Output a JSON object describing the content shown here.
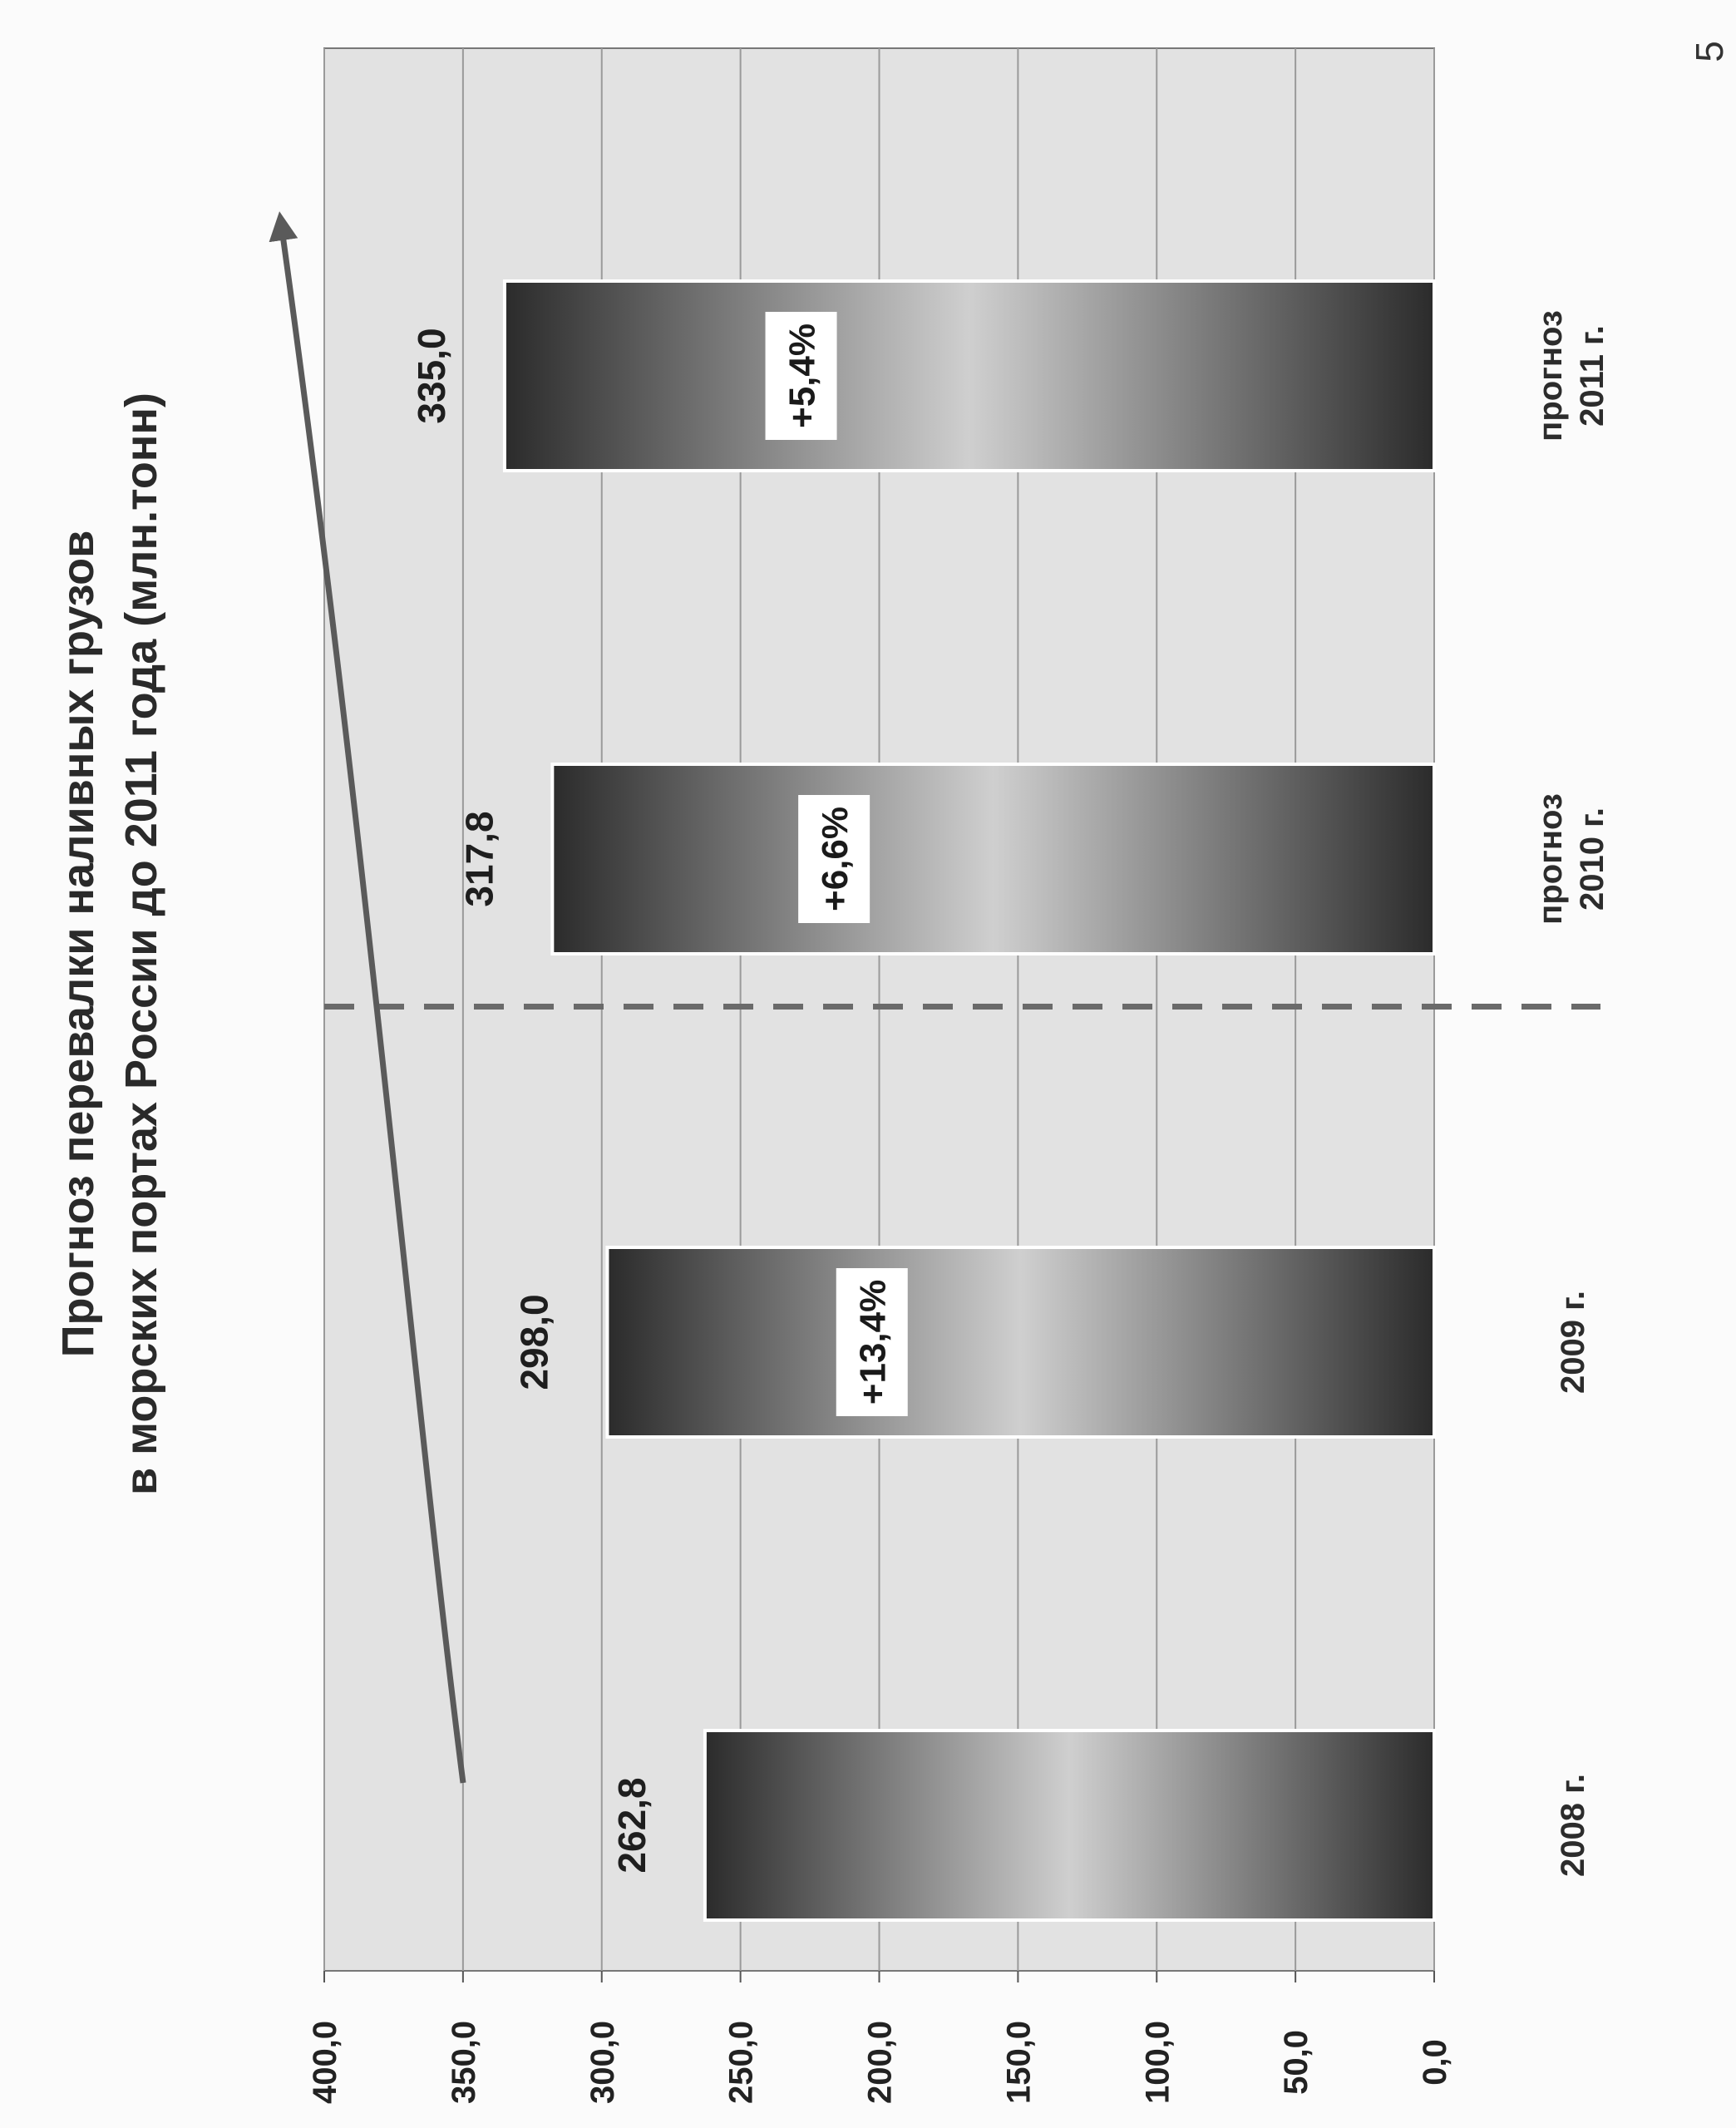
{
  "page_number": "5",
  "chart_data": {
    "type": "bar",
    "title_lines": [
      "Прогноз перевалки наливных грузов",
      "в морских портах России до 2011 года (млн.тонн)"
    ],
    "categories": [
      "2008 г.",
      "2009 г.",
      "прогноз 2010 г.",
      "прогноз 2011 г."
    ],
    "category_lines": [
      [
        "2008 г."
      ],
      [
        "2009 г."
      ],
      [
        "прогноз",
        "2010 г."
      ],
      [
        "прогноз",
        "2011 г."
      ]
    ],
    "values": [
      262.8,
      298.0,
      317.8,
      335.0
    ],
    "value_labels": [
      "262,8",
      "298,0",
      "317,8",
      "335,0"
    ],
    "growth_labels": [
      "",
      "+13,4%",
      "+6,6%",
      "+5,4%"
    ],
    "ylim": [
      0,
      400
    ],
    "yticks": [
      0,
      50,
      100,
      150,
      200,
      250,
      300,
      350,
      400
    ],
    "ytick_labels": [
      "0,0",
      "50,0",
      "100,0",
      "150,0",
      "200,0",
      "250,0",
      "300,0",
      "350,0",
      "400,0"
    ],
    "grid": true,
    "orientation": "rotated-90-ccw",
    "forecast_divider": "dashed line between 2009 г. and прогноз 2010 г.",
    "trend_arrow": true,
    "colors": {
      "plot_background": "#e2e2e2",
      "bar_dark": "#2b2b2b",
      "bar_light": "#cfcfcf",
      "trend_arrow": "#5a5a5a",
      "divider": "#6a6a6a"
    }
  }
}
